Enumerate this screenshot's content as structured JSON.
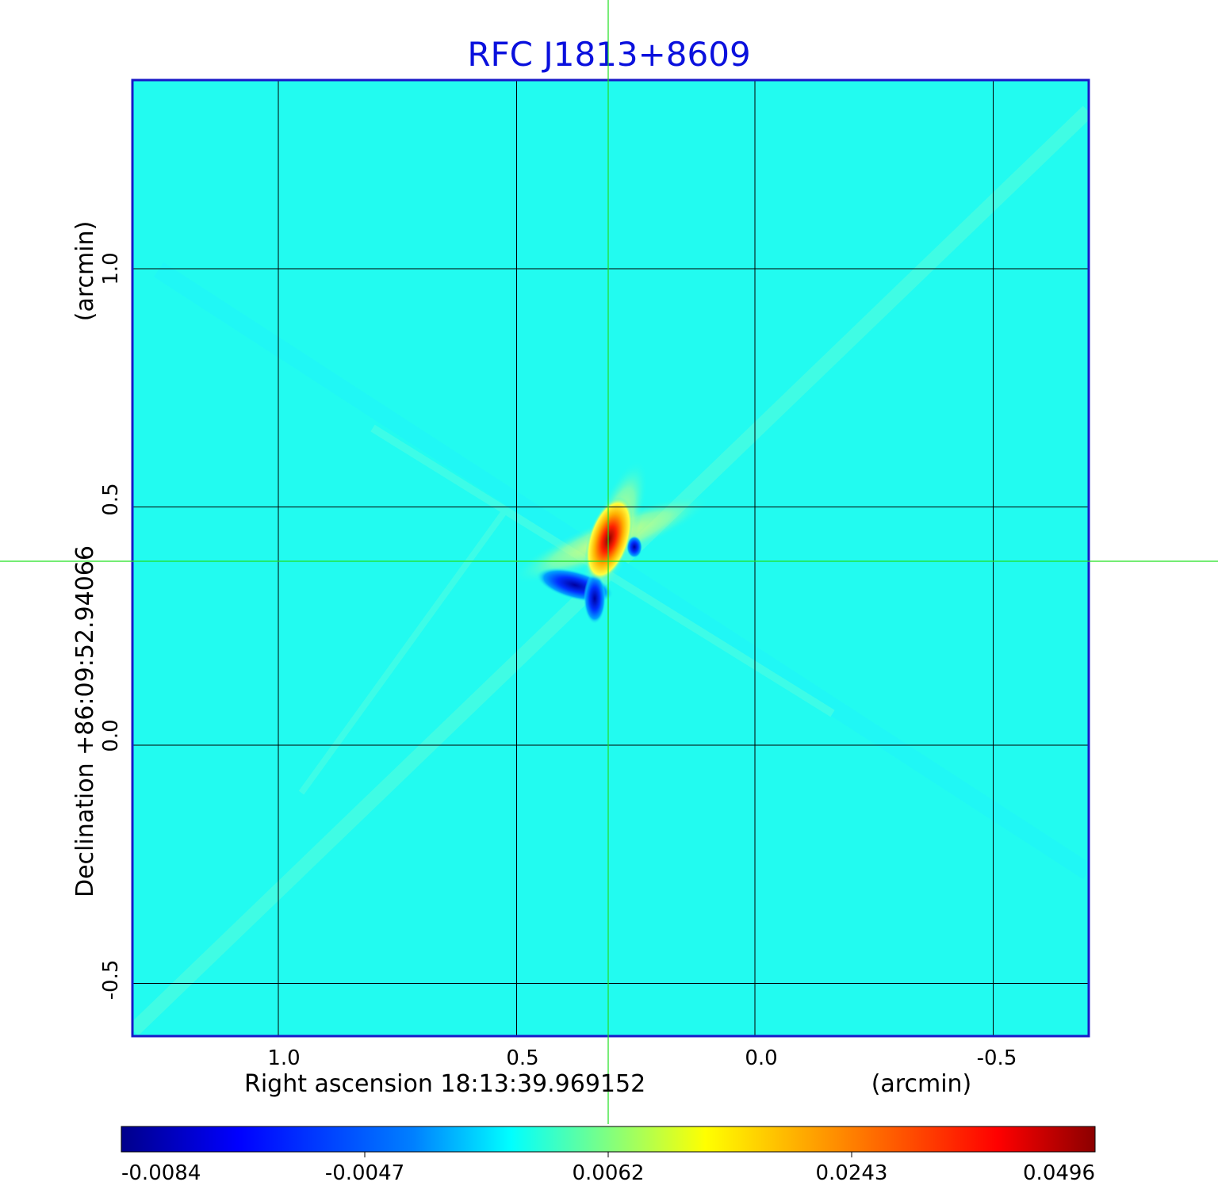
{
  "figure": {
    "title": "RFC J1813+8609",
    "title_color": "#0a10dd",
    "frame_color": "#1818c8",
    "background_level": "#22fbf0",
    "x_axis": {
      "label": "Right ascension  18:13:39.969152",
      "unit": "(arcmin)",
      "ticks": [
        "1.0",
        "0.5",
        "0.0",
        "-0.5"
      ],
      "tick_values": [
        1.0,
        0.5,
        0.0,
        -0.5
      ],
      "direction": "decreasing"
    },
    "y_axis": {
      "label": "Declination  +86:09:52.94066",
      "unit": "(arcmin)",
      "ticks": [
        "1.0",
        "0.5",
        "0.0",
        "-0.5"
      ],
      "tick_values": [
        1.0,
        0.5,
        0.0,
        -0.5
      ]
    },
    "crosshair": {
      "color": "#20e020",
      "ra_offset_arcmin": 0.31,
      "dec_offset_arcmin": 0.385
    },
    "source": {
      "peak_ra_offset_arcmin": 0.32,
      "peak_dec_offset_arcmin": 0.4,
      "peak_value": 0.0496,
      "negative_ra_offset_arcmin": 0.35,
      "negative_dec_offset_arcmin": 0.32,
      "min_value": -0.0084
    },
    "colorbar": {
      "ticks": [
        "-0.0084",
        "-0.0047",
        "0.0062",
        "0.0243",
        "0.0496"
      ],
      "colors": [
        "#00008b",
        "#0000ff",
        "#0080ff",
        "#00ffff",
        "#80ff80",
        "#ffff00",
        "#ff8000",
        "#ff0000",
        "#8b0000"
      ]
    }
  }
}
